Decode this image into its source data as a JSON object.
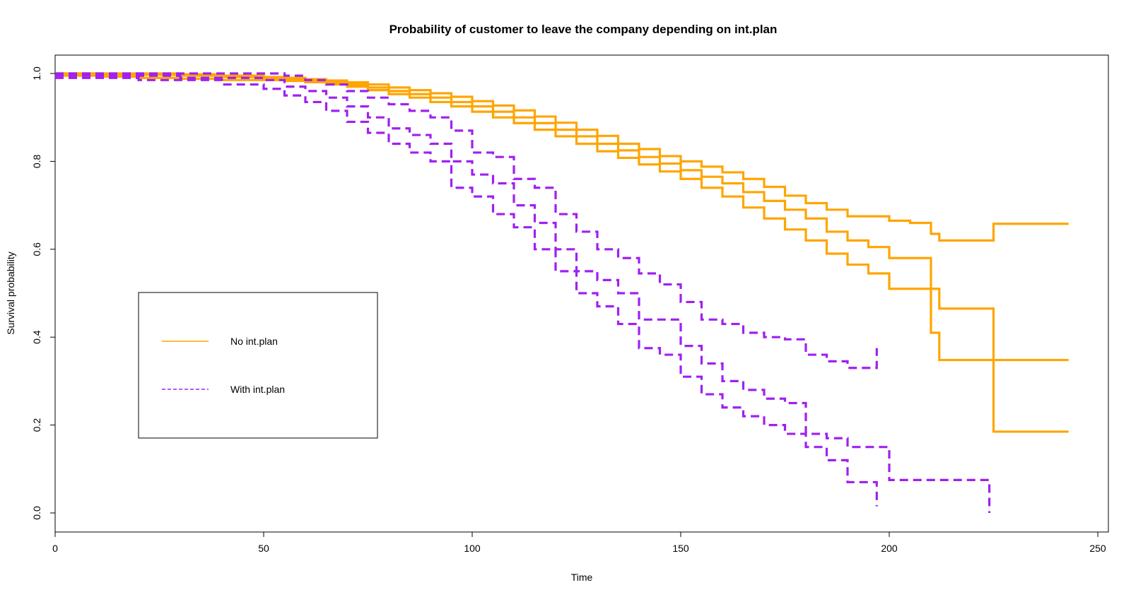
{
  "chart_data": {
    "type": "line",
    "title": "Probability of customer to leave the company depending on int.plan",
    "xlabel": "Time",
    "ylabel": "Survival probability",
    "xlim": [
      0,
      250
    ],
    "ylim": [
      0,
      1
    ],
    "x_ticks": [
      "0",
      "50",
      "100",
      "150",
      "200",
      "250"
    ],
    "y_ticks": [
      "0.0",
      "0.2",
      "0.4",
      "0.6",
      "0.8",
      "1.0"
    ],
    "grid": false,
    "legend_position": "left",
    "legend": [
      {
        "label": "No int.plan",
        "color": "#FFA500",
        "style": "solid"
      },
      {
        "label": "With int.plan",
        "color": "#A020F0",
        "style": "dashed"
      }
    ],
    "series": [
      {
        "group": "No int.plan",
        "color": "#FFA500",
        "style": "solid",
        "x": [
          0,
          10,
          20,
          30,
          40,
          50,
          55,
          60,
          65,
          70,
          75,
          80,
          85,
          90,
          95,
          100,
          105,
          110,
          115,
          120,
          125,
          130,
          135,
          140,
          145,
          150,
          155,
          160,
          165,
          170,
          175,
          180,
          185,
          190,
          195,
          200,
          205,
          210,
          212,
          220,
          225,
          243
        ],
        "y": [
          1.0,
          1.0,
          1.0,
          0.998,
          0.995,
          0.992,
          0.99,
          0.987,
          0.984,
          0.98,
          0.975,
          0.968,
          0.962,
          0.955,
          0.947,
          0.937,
          0.927,
          0.916,
          0.902,
          0.888,
          0.872,
          0.858,
          0.84,
          0.828,
          0.812,
          0.8,
          0.788,
          0.775,
          0.76,
          0.742,
          0.722,
          0.705,
          0.69,
          0.675,
          0.675,
          0.665,
          0.66,
          0.635,
          0.62,
          0.62,
          0.658,
          0.658
        ]
      },
      {
        "group": "No int.plan",
        "color": "#FFA500",
        "style": "solid",
        "x": [
          0,
          10,
          20,
          30,
          40,
          50,
          55,
          60,
          65,
          70,
          75,
          80,
          85,
          90,
          95,
          100,
          105,
          110,
          115,
          120,
          125,
          130,
          135,
          140,
          145,
          150,
          155,
          160,
          165,
          170,
          175,
          180,
          185,
          190,
          195,
          200,
          205,
          210,
          212,
          220,
          225,
          243
        ],
        "y": [
          1.0,
          0.998,
          0.997,
          0.995,
          0.992,
          0.99,
          0.987,
          0.984,
          0.98,
          0.975,
          0.968,
          0.96,
          0.953,
          0.945,
          0.935,
          0.925,
          0.913,
          0.9,
          0.887,
          0.872,
          0.857,
          0.84,
          0.825,
          0.81,
          0.795,
          0.78,
          0.765,
          0.75,
          0.73,
          0.71,
          0.69,
          0.67,
          0.64,
          0.62,
          0.605,
          0.58,
          0.58,
          0.51,
          0.465,
          0.465,
          0.348,
          0.348
        ]
      },
      {
        "group": "No int.plan",
        "color": "#FFA500",
        "style": "solid",
        "x": [
          0,
          10,
          20,
          30,
          40,
          50,
          55,
          60,
          65,
          70,
          75,
          80,
          85,
          90,
          95,
          100,
          105,
          110,
          115,
          120,
          125,
          130,
          135,
          140,
          145,
          150,
          155,
          160,
          165,
          170,
          175,
          180,
          185,
          190,
          195,
          200,
          205,
          210,
          212,
          220,
          225,
          243
        ],
        "y": [
          0.995,
          0.993,
          0.99,
          0.988,
          0.985,
          0.985,
          0.983,
          0.98,
          0.975,
          0.97,
          0.962,
          0.953,
          0.945,
          0.935,
          0.925,
          0.913,
          0.9,
          0.887,
          0.872,
          0.857,
          0.84,
          0.823,
          0.808,
          0.793,
          0.777,
          0.76,
          0.74,
          0.72,
          0.695,
          0.67,
          0.645,
          0.62,
          0.59,
          0.565,
          0.545,
          0.51,
          0.51,
          0.41,
          0.348,
          0.348,
          0.185,
          0.185
        ]
      },
      {
        "group": "With int.plan",
        "color": "#A020F0",
        "style": "dashed",
        "x": [
          0,
          10,
          20,
          30,
          40,
          45,
          50,
          55,
          60,
          65,
          70,
          75,
          80,
          85,
          90,
          95,
          100,
          105,
          110,
          115,
          120,
          125,
          130,
          135,
          140,
          145,
          150,
          155,
          160,
          165,
          170,
          175,
          180,
          185,
          190,
          195,
          197
        ],
        "y": [
          1.0,
          1.0,
          1.0,
          1.0,
          1.0,
          1.0,
          1.0,
          0.995,
          0.985,
          0.975,
          0.96,
          0.945,
          0.93,
          0.915,
          0.9,
          0.87,
          0.82,
          0.81,
          0.76,
          0.74,
          0.68,
          0.64,
          0.6,
          0.58,
          0.545,
          0.52,
          0.48,
          0.44,
          0.43,
          0.41,
          0.4,
          0.395,
          0.36,
          0.345,
          0.33,
          0.33,
          0.375
        ]
      },
      {
        "group": "With int.plan",
        "color": "#A020F0",
        "style": "dashed",
        "x": [
          0,
          10,
          20,
          30,
          40,
          45,
          50,
          55,
          60,
          65,
          70,
          75,
          80,
          85,
          90,
          95,
          100,
          105,
          110,
          115,
          120,
          125,
          130,
          135,
          140,
          145,
          150,
          155,
          160,
          165,
          170,
          175,
          180,
          185,
          190,
          195,
          200,
          210,
          220,
          224
        ],
        "y": [
          0.995,
          0.995,
          0.995,
          0.99,
          0.99,
          0.99,
          0.985,
          0.97,
          0.96,
          0.945,
          0.925,
          0.9,
          0.875,
          0.86,
          0.84,
          0.8,
          0.77,
          0.75,
          0.7,
          0.66,
          0.6,
          0.55,
          0.53,
          0.5,
          0.44,
          0.44,
          0.38,
          0.34,
          0.3,
          0.28,
          0.26,
          0.25,
          0.18,
          0.17,
          0.15,
          0.15,
          0.075,
          0.075,
          0.075,
          0.0
        ]
      },
      {
        "group": "With int.plan",
        "color": "#A020F0",
        "style": "dashed",
        "x": [
          0,
          10,
          20,
          30,
          40,
          45,
          50,
          55,
          60,
          65,
          70,
          75,
          80,
          85,
          90,
          95,
          100,
          105,
          110,
          115,
          120,
          125,
          130,
          135,
          140,
          145,
          150,
          155,
          160,
          165,
          170,
          175,
          180,
          185,
          190,
          195,
          197
        ],
        "y": [
          0.99,
          0.99,
          0.985,
          0.985,
          0.975,
          0.975,
          0.965,
          0.95,
          0.935,
          0.915,
          0.89,
          0.865,
          0.84,
          0.82,
          0.8,
          0.74,
          0.72,
          0.68,
          0.65,
          0.6,
          0.55,
          0.5,
          0.47,
          0.43,
          0.375,
          0.36,
          0.31,
          0.27,
          0.24,
          0.22,
          0.2,
          0.18,
          0.15,
          0.12,
          0.07,
          0.07,
          0.015
        ]
      }
    ]
  }
}
